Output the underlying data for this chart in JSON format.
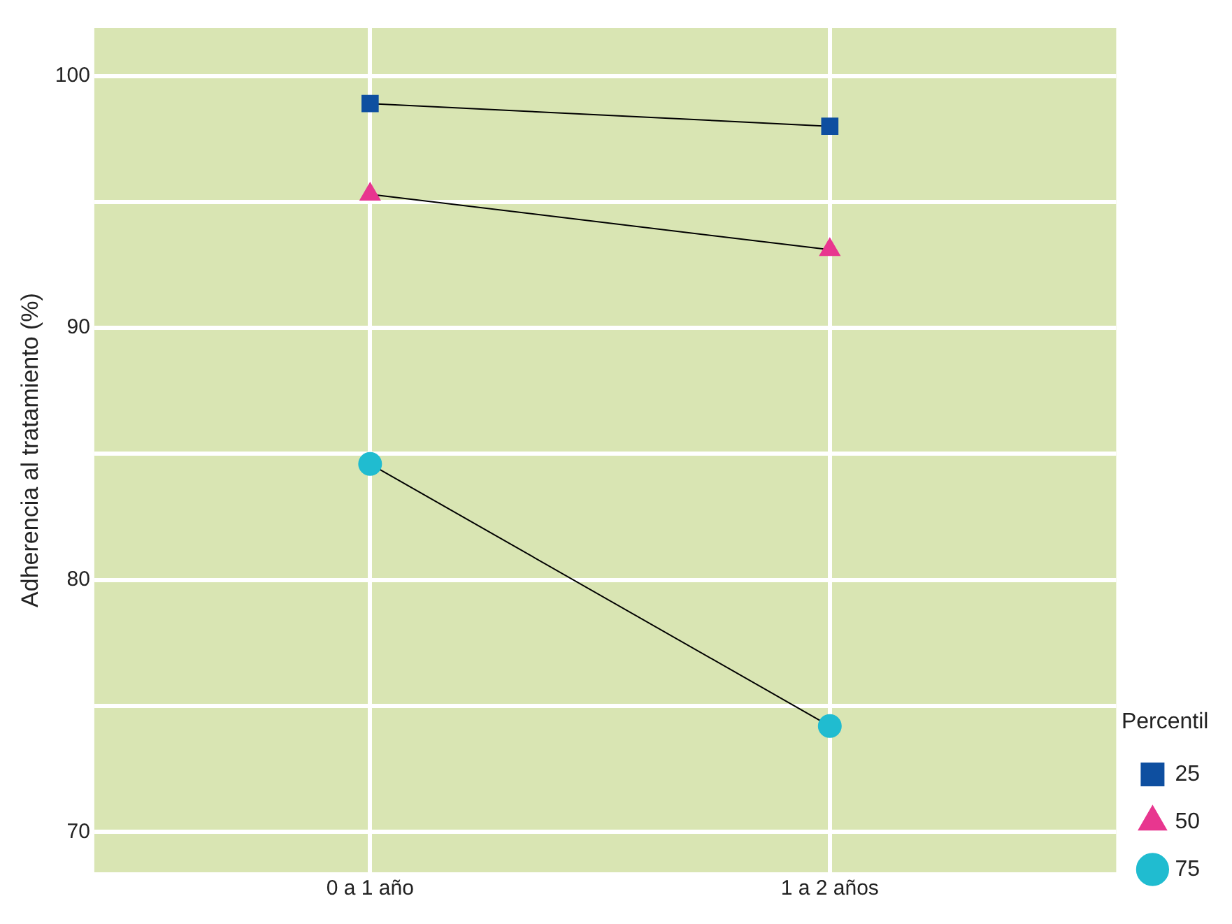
{
  "chart_data": {
    "type": "line",
    "ylabel": "Adherencia al tratamiento (%)",
    "legend_title": "Percentil",
    "categories": [
      "0 a 1 año",
      "1 a 2 años"
    ],
    "series": [
      {
        "name": "25",
        "color": "#0e4fa0",
        "marker": "square",
        "values": [
          98.9,
          98.0
        ]
      },
      {
        "name": "50",
        "color": "#e8368f",
        "marker": "triangle",
        "values": [
          95.3,
          93.1
        ]
      },
      {
        "name": "75",
        "color": "#20bcd0",
        "marker": "circle",
        "values": [
          84.6,
          74.2
        ]
      }
    ],
    "ylim": [
      68.4,
      101.9
    ],
    "yticks": [
      70,
      {
        "value": 75,
        "label": null
      },
      80,
      {
        "value": 85,
        "label": null
      },
      90,
      {
        "value": 95,
        "label": null
      },
      100
    ],
    "grid": true,
    "legend": "right"
  }
}
